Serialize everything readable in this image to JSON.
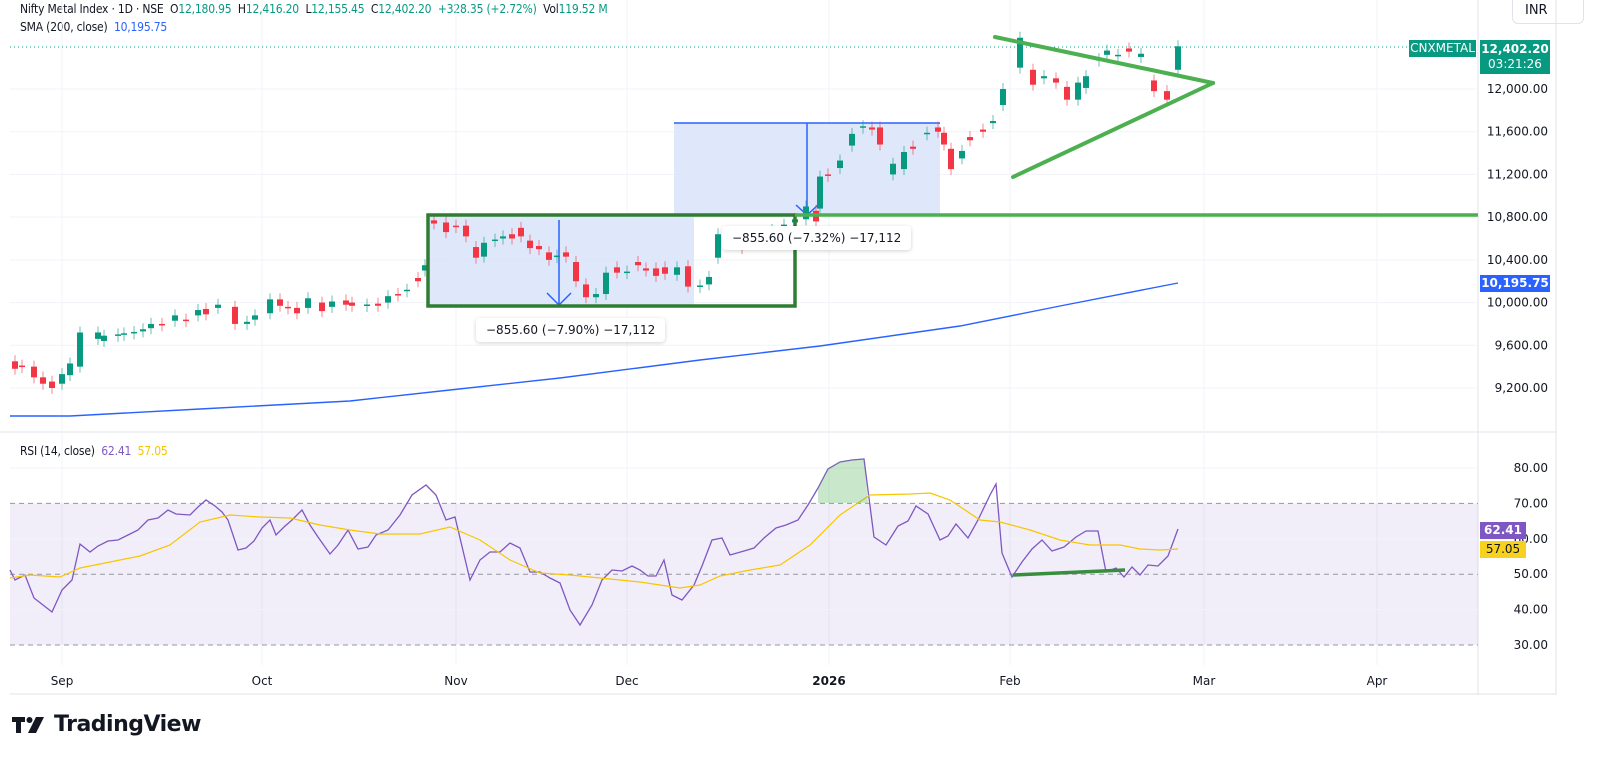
{
  "header": {
    "symbol_title": "Nifty Metal Index · 1D · NSE",
    "open_label": "O",
    "open": "12,180.95",
    "high_label": "H",
    "high": "12,416.20",
    "low_label": "L",
    "low": "12,155.45",
    "close_label": "C",
    "close": "12,402.20",
    "change": "+328.35 (+2.72%)",
    "volume_label": "Vol",
    "volume": "119.52 M",
    "sma_label": "SMA (200, close)",
    "sma_value": "10,195.75",
    "currency": "INR"
  },
  "price_tags": {
    "symbol": "CNXMETAL",
    "last_price": "12,402.20",
    "countdown": "03:21:26",
    "sma": "10,195.75"
  },
  "rsi": {
    "label": "RSI (14, close)",
    "value": "62.41",
    "ma_value": "57.05"
  },
  "measures": [
    {
      "text": "−855.60 (−7.90%) −17,112"
    },
    {
      "text": "−855.60 (−7.32%) −17,112"
    }
  ],
  "brand": {
    "name": "TradingView"
  },
  "colors": {
    "up": "#089981",
    "down": "#f23645",
    "sma": "#2962ff",
    "rsi": "#7e57c2",
    "rsi_ma": "#f7c600",
    "drawing": "#4caf50",
    "box": "#2e7d32",
    "range_fill": "#dbe4fb"
  },
  "chart_data": [
    {
      "type": "candlestick",
      "title": "Nifty Metal Index · 1D · NSE",
      "ylabel": "INR",
      "y_ticks": [
        "12,000.00",
        "11,600.00",
        "11,200.00",
        "10,800.00",
        "10,400.00",
        "10,000.00",
        "9,600.00",
        "9,200.00"
      ],
      "y_tick_values": [
        12000,
        11600,
        11200,
        10800,
        10400,
        10000,
        9600,
        9200
      ],
      "x_ticks": [
        "Sep",
        "Oct",
        "Nov",
        "Dec",
        "2026",
        "Feb",
        "Mar",
        "Apr"
      ],
      "ylim": [
        9000,
        12500
      ],
      "last": {
        "open": 12180.95,
        "high": 12416.2,
        "low": 12155.45,
        "close": 12402.2
      },
      "sma200_last": 10195.75,
      "horizontal_support": 10830,
      "triangle": {
        "upper_start": 12740,
        "lower_start": 11180,
        "apex": 12080
      },
      "grid": true
    },
    {
      "type": "line",
      "title": "RSI (14, close)",
      "y_ticks": [
        "80.00",
        "70.00",
        "60.00",
        "50.00",
        "40.00",
        "30.00"
      ],
      "y_tick_values": [
        80,
        70,
        60,
        50,
        40,
        30
      ],
      "ylim": [
        25,
        87
      ],
      "overbought": 70,
      "oversold": 30,
      "midline": 50,
      "series": [
        {
          "name": "RSI",
          "last": 62.41
        },
        {
          "name": "RSI-based MA",
          "last": 57.05
        }
      ]
    }
  ]
}
